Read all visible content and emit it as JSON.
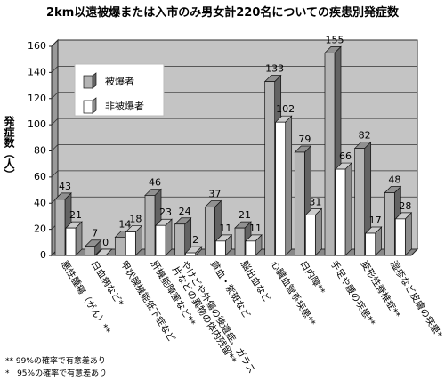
{
  "chart_data": {
    "type": "bar3d",
    "title": "2km以遠被爆または入市のみ男女計220名についての疾患別発症数",
    "y_label": "発症数（人）",
    "categories": [
      "悪性腫瘍（がん）**",
      "白血病など*",
      "甲状腺機能低下症など",
      "肝機能障害など**",
      "やけどや外傷の後遺症、ガラス片などの異物の体内残留**",
      "貧血・紫斑など",
      "脳出血など",
      "心臓血管系疾患**",
      "白内障**",
      "手足や腰の疾患**",
      "変形性脊椎症**",
      "湿疹など皮膚の疾患*"
    ],
    "series": [
      {
        "name": "被爆者",
        "color": "#b4b4b4",
        "values": [
          43,
          7,
          14,
          46,
          24,
          37,
          21,
          133,
          79,
          155,
          82,
          48
        ]
      },
      {
        "name": "非被爆者",
        "color": "#ffffff",
        "values": [
          21,
          0,
          18,
          23,
          2,
          11,
          11,
          102,
          31,
          66,
          17,
          28
        ]
      }
    ],
    "ylim": [
      0,
      160
    ],
    "yticks": [
      0,
      20,
      40,
      60,
      80,
      100,
      120,
      140,
      160
    ],
    "grid": true,
    "legend": "upper-left",
    "notes": [
      "** 99%の確率で有意差あり",
      "*   95%の確率で有意差あり"
    ]
  }
}
